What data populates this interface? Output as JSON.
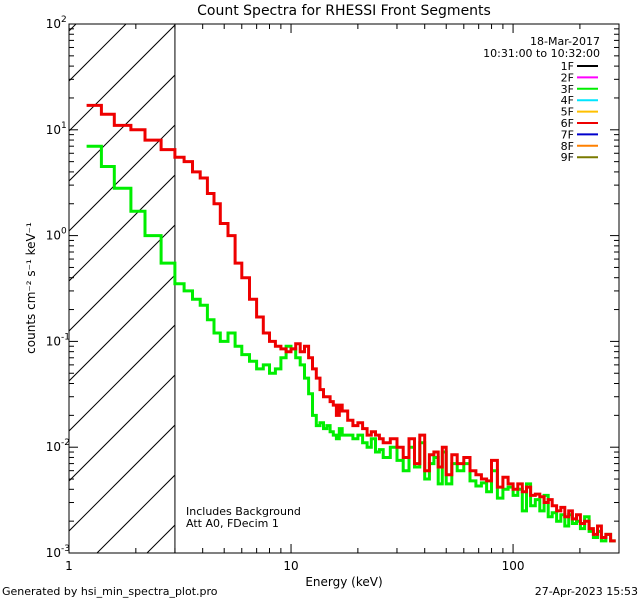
{
  "chart_data": {
    "type": "line",
    "title": "Count Spectra for RHESSI Front Segments",
    "xlabel": "Energy (keV)",
    "ylabel": "counts cm⁻² s⁻¹ keV⁻¹",
    "xscale": "log",
    "yscale": "log",
    "xlim": [
      1,
      300
    ],
    "ylim": [
      0.001,
      100
    ],
    "x_ticks": [
      {
        "value": 1,
        "label": "1"
      },
      {
        "value": 10,
        "label": "10"
      },
      {
        "value": 100,
        "label": "100"
      }
    ],
    "y_ticks": [
      {
        "value": 0.001,
        "base": "10",
        "exp": "-3"
      },
      {
        "value": 0.01,
        "base": "10",
        "exp": "-2"
      },
      {
        "value": 0.1,
        "base": "10",
        "exp": "-1"
      },
      {
        "value": 1,
        "base": "10",
        "exp": "0"
      },
      {
        "value": 10,
        "base": "10",
        "exp": "1"
      },
      {
        "value": 100,
        "base": "10",
        "exp": "2"
      }
    ],
    "date": "18-Mar-2017",
    "time_range": "10:31:00 to 10:32:00",
    "legend": [
      {
        "name": "1F",
        "color": "#000000"
      },
      {
        "name": "2F",
        "color": "#ff00ff"
      },
      {
        "name": "3F",
        "color": "#00ee00"
      },
      {
        "name": "4F",
        "color": "#00e5ff"
      },
      {
        "name": "5F",
        "color": "#ffc000"
      },
      {
        "name": "6F",
        "color": "#ee0000"
      },
      {
        "name": "7F",
        "color": "#0000cc"
      },
      {
        "name": "8F",
        "color": "#ff8000"
      },
      {
        "name": "9F",
        "color": "#7a7a00"
      }
    ],
    "hatched_region": {
      "x_min": 1,
      "x_max": 3
    },
    "annotations": [
      "Includes Background",
      "Att A0, FDecim 1"
    ],
    "series": [
      {
        "name": "6F",
        "color": "#ee0000",
        "edges": [
          1.2,
          1.4,
          1.6,
          1.9,
          2.2,
          2.6,
          3.0,
          3.3,
          3.6,
          3.9,
          4.2,
          4.5,
          4.8,
          5.2,
          5.6,
          6.0,
          6.5,
          7.0,
          7.5,
          8.0,
          8.5,
          9.0,
          9.5,
          10.0,
          10.5,
          11.0,
          11.5,
          12.0,
          12.5,
          13.0,
          13.5,
          14.0,
          14.5,
          15.0,
          15.5,
          16.0,
          16.5,
          17.0,
          18.0,
          19.0,
          20.0,
          21.0,
          22.0,
          23.0,
          24.0,
          25.0,
          26.0,
          28.0,
          30.0,
          32.0,
          34.0,
          36.0,
          38.0,
          40.0,
          42.0,
          44.0,
          46.0,
          48.0,
          50.0,
          53.0,
          56.0,
          60.0,
          64.0,
          68.0,
          72.0,
          76.0,
          80.0,
          85.0,
          90.0,
          95.0,
          100.0,
          105.0,
          110.0,
          115.0,
          120.0,
          126.0,
          132.0,
          138.0,
          144.0,
          150.0,
          157.0,
          164.0,
          171.0,
          178.0,
          185.0,
          193.0,
          201.0,
          210.0,
          220.0,
          230.0,
          240.0,
          250.0,
          262.0,
          275.0,
          290.0
        ],
        "values": [
          17,
          14,
          11,
          10,
          8,
          6.5,
          5.5,
          5.0,
          4.0,
          3.5,
          2.5,
          2.0,
          1.3,
          1.0,
          0.55,
          0.4,
          0.25,
          0.17,
          0.12,
          0.1,
          0.09,
          0.085,
          0.08,
          0.085,
          0.095,
          0.08,
          0.09,
          0.07,
          0.055,
          0.045,
          0.035,
          0.03,
          0.03,
          0.027,
          0.025,
          0.02,
          0.025,
          0.022,
          0.018,
          0.016,
          0.017,
          0.015,
          0.013,
          0.014,
          0.013,
          0.012,
          0.011,
          0.012,
          0.01,
          0.008,
          0.012,
          0.007,
          0.013,
          0.006,
          0.0085,
          0.009,
          0.0065,
          0.01,
          0.0055,
          0.0085,
          0.007,
          0.008,
          0.006,
          0.0055,
          0.005,
          0.0048,
          0.0075,
          0.0042,
          0.0052,
          0.0045,
          0.004,
          0.0045,
          0.0038,
          0.0042,
          0.0035,
          0.0036,
          0.0034,
          0.003,
          0.0032,
          0.0028,
          0.0025,
          0.0027,
          0.0022,
          0.0025,
          0.0021,
          0.0023,
          0.0019,
          0.002,
          0.0017,
          0.0015,
          0.0018,
          0.0014,
          0.0015,
          0.0013
        ]
      },
      {
        "name": "3F",
        "color": "#00ee00",
        "edges": [
          1.2,
          1.4,
          1.6,
          1.9,
          2.2,
          2.6,
          3.0,
          3.3,
          3.6,
          3.9,
          4.2,
          4.5,
          4.8,
          5.2,
          5.6,
          6.0,
          6.5,
          7.0,
          7.5,
          8.0,
          8.5,
          9.0,
          9.5,
          10.0,
          10.5,
          11.0,
          11.5,
          12.0,
          12.5,
          13.0,
          13.5,
          14.0,
          14.5,
          15.0,
          15.5,
          16.0,
          16.5,
          17.0,
          18.0,
          19.0,
          20.0,
          21.0,
          22.0,
          23.0,
          24.0,
          25.0,
          26.0,
          28.0,
          30.0,
          32.0,
          34.0,
          36.0,
          38.0,
          40.0,
          42.0,
          44.0,
          46.0,
          48.0,
          50.0,
          53.0,
          56.0,
          60.0,
          64.0,
          68.0,
          72.0,
          76.0,
          80.0,
          85.0,
          90.0,
          95.0,
          100.0,
          105.0,
          110.0,
          115.0,
          120.0,
          126.0,
          132.0,
          138.0,
          144.0,
          150.0,
          157.0,
          164.0,
          171.0,
          178.0,
          185.0,
          193.0,
          201.0,
          210.0,
          220.0,
          230.0,
          240.0,
          250.0,
          262.0,
          275.0,
          290.0
        ],
        "values": [
          7,
          4.5,
          2.8,
          1.7,
          1.0,
          0.55,
          0.35,
          0.3,
          0.25,
          0.22,
          0.16,
          0.12,
          0.1,
          0.12,
          0.09,
          0.075,
          0.065,
          0.055,
          0.06,
          0.05,
          0.055,
          0.07,
          0.09,
          0.085,
          0.07,
          0.06,
          0.045,
          0.032,
          0.02,
          0.016,
          0.017,
          0.015,
          0.016,
          0.014,
          0.013,
          0.012,
          0.015,
          0.013,
          0.013,
          0.012,
          0.013,
          0.011,
          0.01,
          0.012,
          0.009,
          0.0095,
          0.008,
          0.01,
          0.0075,
          0.006,
          0.01,
          0.0065,
          0.011,
          0.005,
          0.007,
          0.008,
          0.0045,
          0.009,
          0.0045,
          0.007,
          0.006,
          0.007,
          0.0048,
          0.0043,
          0.0046,
          0.0038,
          0.006,
          0.0033,
          0.004,
          0.0042,
          0.0035,
          0.004,
          0.0025,
          0.0045,
          0.0028,
          0.0032,
          0.0025,
          0.0035,
          0.0022,
          0.0024,
          0.002,
          0.0023,
          0.0018,
          0.0023,
          0.0019,
          0.002,
          0.0017,
          0.0022,
          0.0016,
          0.0014,
          0.0016,
          0.0013,
          0.0015,
          0.0013
        ]
      }
    ]
  },
  "footer": {
    "generated_by": "Generated by hsi_min_spectra_plot.pro",
    "timestamp": "27-Apr-2023 15:53"
  }
}
